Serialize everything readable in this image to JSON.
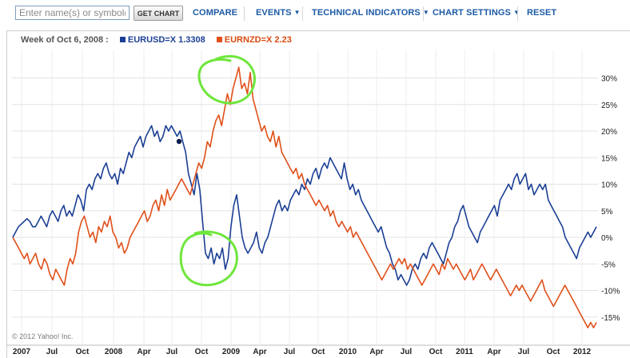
{
  "toolbar": {
    "search_placeholder": "Enter name(s) or symbol(s)",
    "get_chart_label": "GET CHART",
    "compare_label": "COMPARE",
    "events_label": "EVENTS",
    "technical_indicators_label": "TECHNICAL INDICATORS",
    "chart_settings_label": "CHART SETTINGS",
    "reset_label": "RESET"
  },
  "legend": {
    "week_label": "Week of Oct 6, 2008 :",
    "series_1": "EURUSD=X 1.3308",
    "series_2": "EURNZD=X 2.23"
  },
  "copyright": "© 2012 Yahoo! Inc.",
  "colors": {
    "accent": "#1c5aa5",
    "eurusd": "#1b3f94",
    "eurnzd": "#e0501a",
    "annotation": "#6fe63c"
  },
  "chart_data": {
    "type": "line",
    "x_tick_labels": [
      "2007",
      "Jul",
      "Oct",
      "2008",
      "Apr",
      "Jul",
      "Oct",
      "2009",
      "Apr",
      "Jul",
      "Oct",
      "2010",
      "Apr",
      "Jul",
      "Oct",
      "2011",
      "Apr",
      "Jul",
      "Oct",
      "2012"
    ],
    "y_tick_labels": [
      "30%",
      "25%",
      "20%",
      "15%",
      "10%",
      "5%",
      "0%",
      "-5%",
      "-10%",
      "-15%"
    ],
    "yunit": "%",
    "ylim": [
      -17,
      33
    ],
    "grid": true,
    "series": [
      {
        "name": "EURUSD=X",
        "color": "#1b3f94",
        "values": [
          0,
          1,
          2,
          2.5,
          3,
          3.5,
          3,
          2,
          2,
          3,
          4,
          3,
          2,
          4,
          5,
          4,
          3,
          5,
          6,
          4,
          5,
          4,
          6,
          8,
          7,
          5,
          9,
          10,
          9,
          11,
          12,
          11,
          13,
          14,
          12,
          11,
          12,
          10,
          13,
          12,
          14,
          16,
          15,
          17,
          18,
          19,
          17,
          19,
          20,
          21,
          19,
          20,
          18,
          19,
          21,
          20,
          21,
          20,
          19,
          20,
          18,
          16,
          12,
          10,
          8,
          12,
          9,
          3,
          -3,
          -4,
          -2,
          -5,
          -3,
          -4,
          -2,
          -6,
          -4,
          2,
          6,
          8,
          4,
          0,
          -2,
          -3,
          -2,
          -1,
          1,
          -2,
          -3,
          -1,
          0,
          2,
          4,
          6,
          7,
          5,
          6,
          5,
          7,
          8,
          9,
          8,
          10,
          9,
          11,
          10,
          12,
          13,
          11,
          13,
          14,
          13,
          15,
          14,
          13,
          12,
          11,
          14,
          11,
          9,
          10,
          8,
          9,
          7,
          6,
          5,
          4,
          3,
          2,
          1,
          2,
          0,
          -2,
          -3,
          -5,
          -6,
          -8,
          -7,
          -8,
          -9,
          -8,
          -6,
          -5,
          -6,
          -4,
          -3,
          -4,
          -2,
          -1,
          -2,
          -3,
          -4,
          -5,
          -3,
          -1,
          0,
          2,
          3,
          5,
          6,
          4,
          2,
          1,
          0,
          -1,
          1,
          2,
          3,
          4,
          5,
          6,
          4,
          7,
          8,
          9,
          10,
          9,
          11,
          12,
          10,
          11,
          12,
          9,
          10,
          8,
          9,
          10,
          9,
          10,
          7,
          6,
          5,
          4,
          3,
          2,
          0,
          -1,
          -2,
          -3,
          -4,
          -2,
          -1,
          0,
          1,
          0,
          1,
          2
        ]
      },
      {
        "name": "EURNZD=X",
        "color": "#e0501a",
        "values": [
          0,
          -1,
          -2,
          -3,
          -4,
          -3,
          -5,
          -4,
          -3,
          -5,
          -6,
          -4,
          -5,
          -7,
          -8,
          -6,
          -7,
          -8,
          -9,
          -6,
          -4,
          -5,
          -3,
          1,
          3,
          4,
          2,
          0,
          1,
          -1,
          2,
          1,
          3,
          2,
          4,
          1,
          0,
          -2,
          -1,
          -3,
          -2,
          0,
          1,
          2,
          3,
          4,
          5,
          3,
          4,
          6,
          7,
          5,
          8,
          6,
          9,
          7,
          8,
          9,
          10,
          11,
          10,
          9,
          8,
          10,
          12,
          14,
          13,
          15,
          18,
          17,
          20,
          22,
          23,
          21,
          24,
          27,
          25,
          28,
          30,
          32,
          28,
          29,
          27,
          31,
          26,
          24,
          22,
          20,
          21,
          19,
          18,
          20,
          17,
          19,
          16,
          15,
          14,
          13,
          12,
          13,
          11,
          12,
          10,
          9,
          8,
          7,
          6,
          7,
          6,
          5,
          6,
          4,
          5,
          3,
          2,
          3,
          2,
          1,
          2,
          0,
          1,
          0,
          -1,
          -2,
          -3,
          -4,
          -5,
          -6,
          -7,
          -8,
          -7,
          -6,
          -5,
          -6,
          -5,
          -4,
          -5,
          -4,
          -6,
          -5,
          -6,
          -7,
          -8,
          -9,
          -8,
          -7,
          -6,
          -5,
          -6,
          -7,
          -5,
          -6,
          -4,
          -5,
          -6,
          -5,
          -6,
          -7,
          -8,
          -7,
          -6,
          -8,
          -7,
          -6,
          -5,
          -6,
          -7,
          -8,
          -7,
          -6,
          -7,
          -8,
          -9,
          -10,
          -11,
          -10,
          -9,
          -10,
          -9,
          -10,
          -11,
          -12,
          -11,
          -10,
          -9,
          -8,
          -10,
          -11,
          -12,
          -13,
          -12,
          -11,
          -10,
          -9,
          -10,
          -11,
          -12,
          -13,
          -14,
          -15,
          -16,
          -17,
          -16,
          -17,
          -16
        ]
      }
    ],
    "marker": {
      "series": "EURUSD=X",
      "label": "Week of Oct 6, 2008"
    }
  }
}
